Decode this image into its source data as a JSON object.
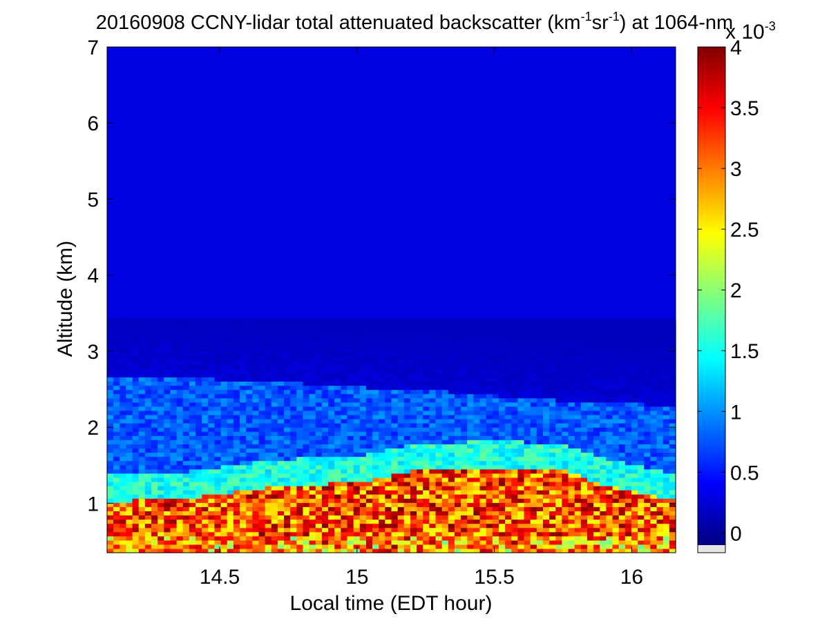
{
  "chart_data": {
    "type": "heatmap",
    "title": {
      "date": "20160908",
      "main": "CCNY-lidar total attenuated backscatter (km",
      "sup1": "-1",
      "mid": "sr",
      "sup2": "-1",
      "tail": ") at 1064-nm"
    },
    "xlabel": "Local time (EDT hour)",
    "ylabel": "Altitude (km)",
    "xlim": [
      14.09,
      16.16
    ],
    "ylim": [
      0.35,
      7
    ],
    "x_ticks": [
      14.5,
      15,
      15.5,
      16
    ],
    "x_tick_labels": [
      "14.5",
      "15",
      "15.5",
      "16"
    ],
    "y_ticks": [
      1,
      2,
      3,
      4,
      5,
      6,
      7
    ],
    "y_tick_labels": [
      "1",
      "2",
      "3",
      "4",
      "5",
      "6",
      "7"
    ],
    "colorbar": {
      "range": [
        -0.1,
        4
      ],
      "ticks": [
        0,
        0.5,
        1,
        1.5,
        2,
        2.5,
        3,
        3.5,
        4
      ],
      "tick_labels": [
        "0",
        "0.5",
        "1",
        "1.5",
        "2",
        "2.5",
        "3",
        "3.5",
        "4"
      ],
      "multiplier_label": "x 10",
      "multiplier_exponent": "-3",
      "colormap": "jet"
    },
    "features": {
      "aerosol_layer_top_km": [
        {
          "t": 14.1,
          "z": 2.65
        },
        {
          "t": 14.5,
          "z": 2.6
        },
        {
          "t": 14.8,
          "z": 2.55
        },
        {
          "t": 15.0,
          "z": 2.5
        },
        {
          "t": 15.3,
          "z": 2.45
        },
        {
          "t": 15.6,
          "z": 2.35
        },
        {
          "t": 15.9,
          "z": 2.3
        },
        {
          "t": 16.15,
          "z": 2.25
        }
      ],
      "high_backscatter_layer_top_km": [
        {
          "t": 14.1,
          "z": 1.0
        },
        {
          "t": 14.4,
          "z": 1.05
        },
        {
          "t": 14.7,
          "z": 1.2
        },
        {
          "t": 15.0,
          "z": 1.25
        },
        {
          "t": 15.2,
          "z": 1.4
        },
        {
          "t": 15.5,
          "z": 1.45
        },
        {
          "t": 15.75,
          "z": 1.4
        },
        {
          "t": 15.9,
          "z": 1.2
        },
        {
          "t": 16.15,
          "z": 1.0
        }
      ]
    }
  }
}
